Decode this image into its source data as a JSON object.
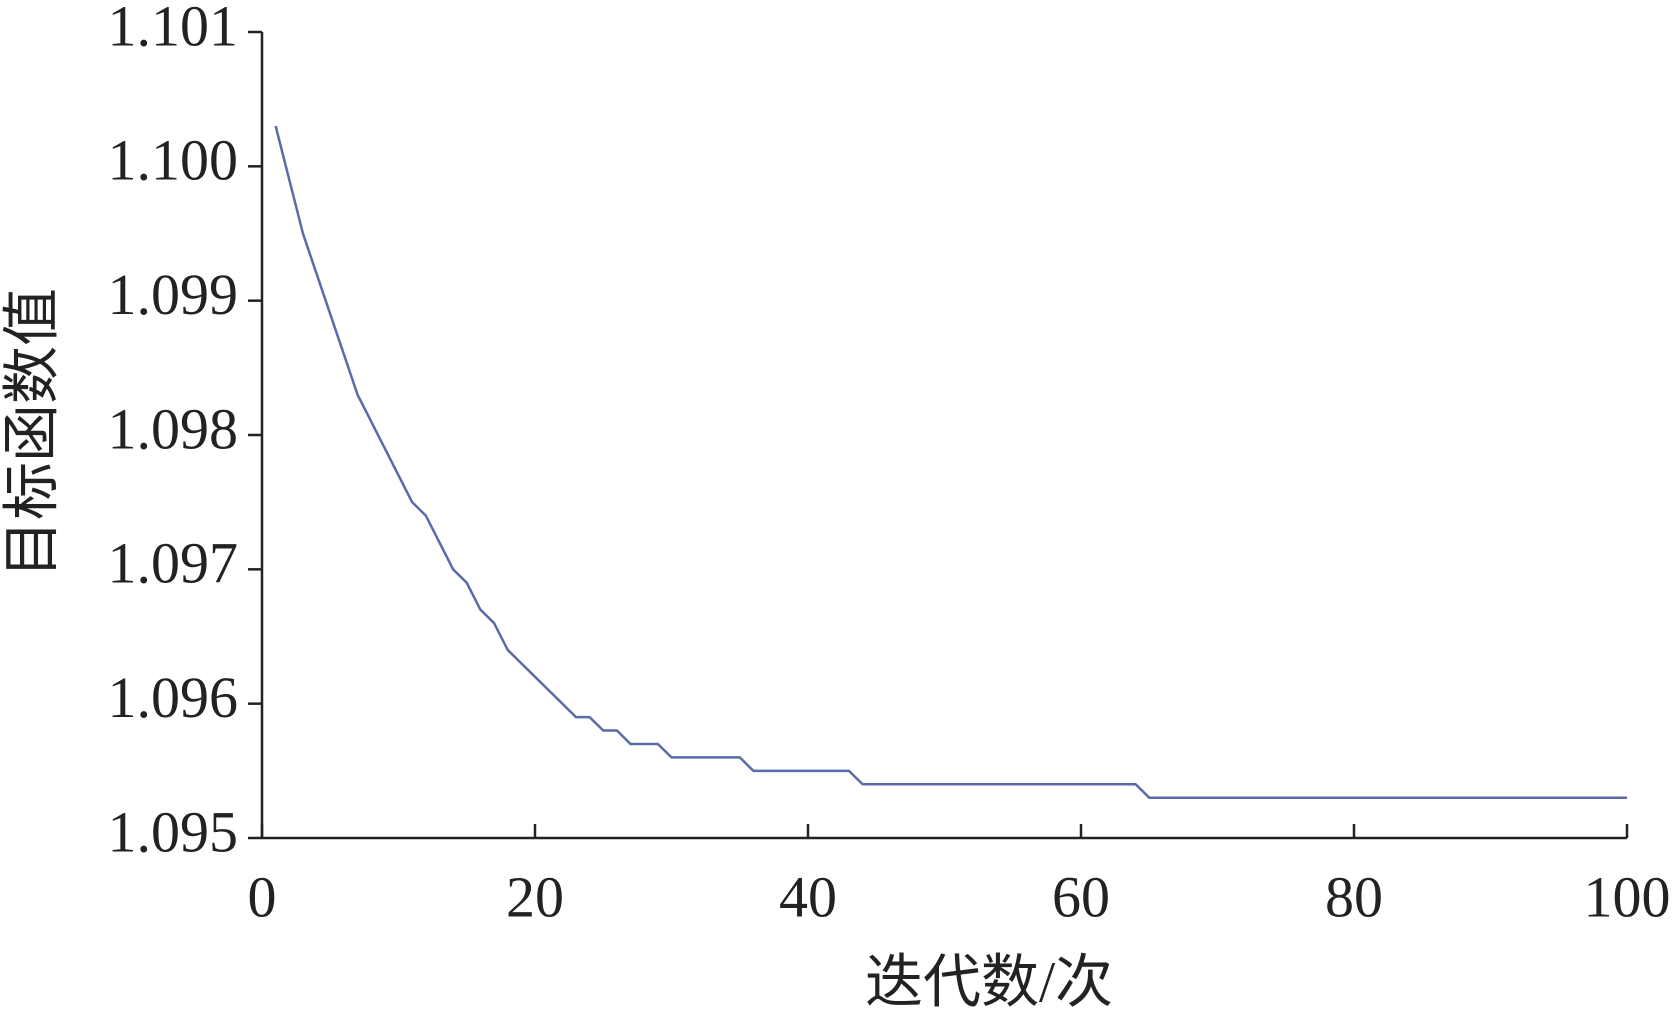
{
  "chart_data": {
    "type": "line",
    "x_label": "迭代数/次",
    "y_label": "目标函数值",
    "x": [
      1,
      2,
      3,
      4,
      5,
      6,
      7,
      8,
      9,
      10,
      11,
      12,
      13,
      14,
      15,
      16,
      17,
      18,
      19,
      20,
      21,
      22,
      23,
      24,
      25,
      26,
      27,
      28,
      29,
      30,
      31,
      32,
      33,
      34,
      35,
      36,
      37,
      38,
      39,
      40,
      41,
      42,
      43,
      44,
      45,
      46,
      47,
      48,
      49,
      50,
      51,
      52,
      53,
      54,
      55,
      56,
      57,
      58,
      59,
      60,
      61,
      62,
      63,
      64,
      65,
      66,
      67,
      68,
      69,
      70,
      71,
      72,
      73,
      74,
      75,
      76,
      77,
      78,
      79,
      80,
      81,
      82,
      83,
      84,
      85,
      86,
      87,
      88,
      89,
      90,
      91,
      92,
      93,
      94,
      95,
      96,
      97,
      98,
      99,
      100
    ],
    "values": [
      1.1003,
      1.0999,
      1.0995,
      1.0992,
      1.0989,
      1.0986,
      1.0983,
      1.0981,
      1.0979,
      1.0977,
      1.0975,
      1.0974,
      1.0972,
      1.097,
      1.0969,
      1.0967,
      1.0966,
      1.0964,
      1.0963,
      1.0962,
      1.0961,
      1.096,
      1.0959,
      1.0959,
      1.0958,
      1.0958,
      1.0957,
      1.0957,
      1.0957,
      1.0956,
      1.0956,
      1.0956,
      1.0956,
      1.0956,
      1.0956,
      1.0955,
      1.0955,
      1.0955,
      1.0955,
      1.0955,
      1.0955,
      1.0955,
      1.0955,
      1.0954,
      1.0954,
      1.0954,
      1.0954,
      1.0954,
      1.0954,
      1.0954,
      1.0954,
      1.0954,
      1.0954,
      1.0954,
      1.0954,
      1.0954,
      1.0954,
      1.0954,
      1.0954,
      1.0954,
      1.0954,
      1.0954,
      1.0954,
      1.0954,
      1.0953,
      1.0953,
      1.0953,
      1.0953,
      1.0953,
      1.0953,
      1.0953,
      1.0953,
      1.0953,
      1.0953,
      1.0953,
      1.0953,
      1.0953,
      1.0953,
      1.0953,
      1.0953,
      1.0953,
      1.0953,
      1.0953,
      1.0953,
      1.0953,
      1.0953,
      1.0953,
      1.0953,
      1.0953,
      1.0953,
      1.0953,
      1.0953,
      1.0953,
      1.0953,
      1.0953,
      1.0953,
      1.0953,
      1.0953,
      1.0953,
      1.0953
    ],
    "color": "#5b6aa8",
    "xlim": [
      0,
      100
    ],
    "xticks": [
      0,
      20,
      40,
      60,
      80,
      100
    ],
    "ylim": [
      1.095,
      1.101
    ],
    "yticks": [
      1.095,
      1.096,
      1.097,
      1.098,
      1.099,
      {
        "value": 1.1,
        "label": "1.100"
      },
      1.101
    ],
    "grid": false
  }
}
